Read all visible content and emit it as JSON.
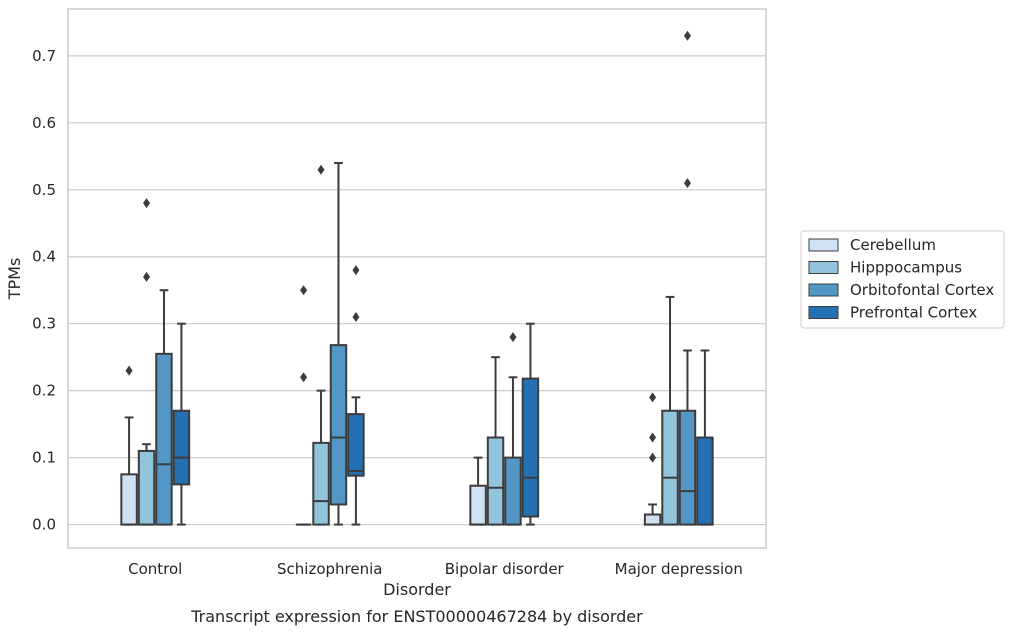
{
  "caption": "Transcript expression for ENST00000467284 by disorder",
  "chart_data": {
    "type": "box",
    "xlabel": "Disorder",
    "ylabel": "TPMs",
    "ylim": [
      -0.035,
      0.77
    ],
    "yticks": [
      "0.0",
      "0.1",
      "0.2",
      "0.3",
      "0.4",
      "0.5",
      "0.6",
      "0.7"
    ],
    "grid": true,
    "legend_position": "right",
    "categories": [
      "Control",
      "Schizophrenia",
      "Bipolar disorder",
      "Major depression"
    ],
    "series": [
      {
        "name": "Cerebellum",
        "color": "#cfe1f2",
        "boxes": [
          {
            "whisker_low": 0.0,
            "q1": 0.0,
            "median": 0.0,
            "q3": 0.075,
            "whisker_high": 0.16,
            "outliers": [
              0.23
            ]
          },
          {
            "whisker_low": 0.0,
            "q1": 0.0,
            "median": 0.0,
            "q3": 0.0,
            "whisker_high": 0.0,
            "outliers": [
              0.22,
              0.35
            ]
          },
          {
            "whisker_low": 0.0,
            "q1": 0.0,
            "median": 0.0,
            "q3": 0.058,
            "whisker_high": 0.1,
            "outliers": []
          },
          {
            "whisker_low": 0.0,
            "q1": 0.0,
            "median": 0.0,
            "q3": 0.015,
            "whisker_high": 0.03,
            "outliers": [
              0.1,
              0.13,
              0.19
            ]
          }
        ]
      },
      {
        "name": "Hipppocampus",
        "color": "#93c4de",
        "boxes": [
          {
            "whisker_low": 0.0,
            "q1": 0.0,
            "median": 0.0,
            "q3": 0.11,
            "whisker_high": 0.12,
            "outliers": [
              0.37,
              0.48
            ]
          },
          {
            "whisker_low": 0.0,
            "q1": 0.0,
            "median": 0.035,
            "q3": 0.122,
            "whisker_high": 0.2,
            "outliers": [
              0.53
            ]
          },
          {
            "whisker_low": 0.0,
            "q1": 0.0,
            "median": 0.055,
            "q3": 0.13,
            "whisker_high": 0.25,
            "outliers": []
          },
          {
            "whisker_low": 0.0,
            "q1": 0.0,
            "median": 0.07,
            "q3": 0.17,
            "whisker_high": 0.34,
            "outliers": []
          }
        ]
      },
      {
        "name": "Orbitofontal Cortex",
        "color": "#5297c6",
        "boxes": [
          {
            "whisker_low": 0.0,
            "q1": 0.0,
            "median": 0.09,
            "q3": 0.255,
            "whisker_high": 0.35,
            "outliers": []
          },
          {
            "whisker_low": 0.0,
            "q1": 0.03,
            "median": 0.13,
            "q3": 0.268,
            "whisker_high": 0.54,
            "outliers": []
          },
          {
            "whisker_low": 0.0,
            "q1": 0.0,
            "median": 0.0,
            "q3": 0.1,
            "whisker_high": 0.22,
            "outliers": [
              0.28
            ]
          },
          {
            "whisker_low": 0.0,
            "q1": 0.0,
            "median": 0.05,
            "q3": 0.17,
            "whisker_high": 0.26,
            "outliers": [
              0.51,
              0.73
            ]
          }
        ]
      },
      {
        "name": "Prefrontal Cortex",
        "color": "#2470b2",
        "boxes": [
          {
            "whisker_low": 0.0,
            "q1": 0.06,
            "median": 0.1,
            "q3": 0.17,
            "whisker_high": 0.3,
            "outliers": []
          },
          {
            "whisker_low": 0.0,
            "q1": 0.073,
            "median": 0.08,
            "q3": 0.165,
            "whisker_high": 0.19,
            "outliers": [
              0.31,
              0.38
            ]
          },
          {
            "whisker_low": 0.0,
            "q1": 0.012,
            "median": 0.07,
            "q3": 0.218,
            "whisker_high": 0.3,
            "outliers": []
          },
          {
            "whisker_low": 0.0,
            "q1": 0.0,
            "median": 0.0,
            "q3": 0.13,
            "whisker_high": 0.26,
            "outliers": []
          }
        ]
      }
    ]
  }
}
